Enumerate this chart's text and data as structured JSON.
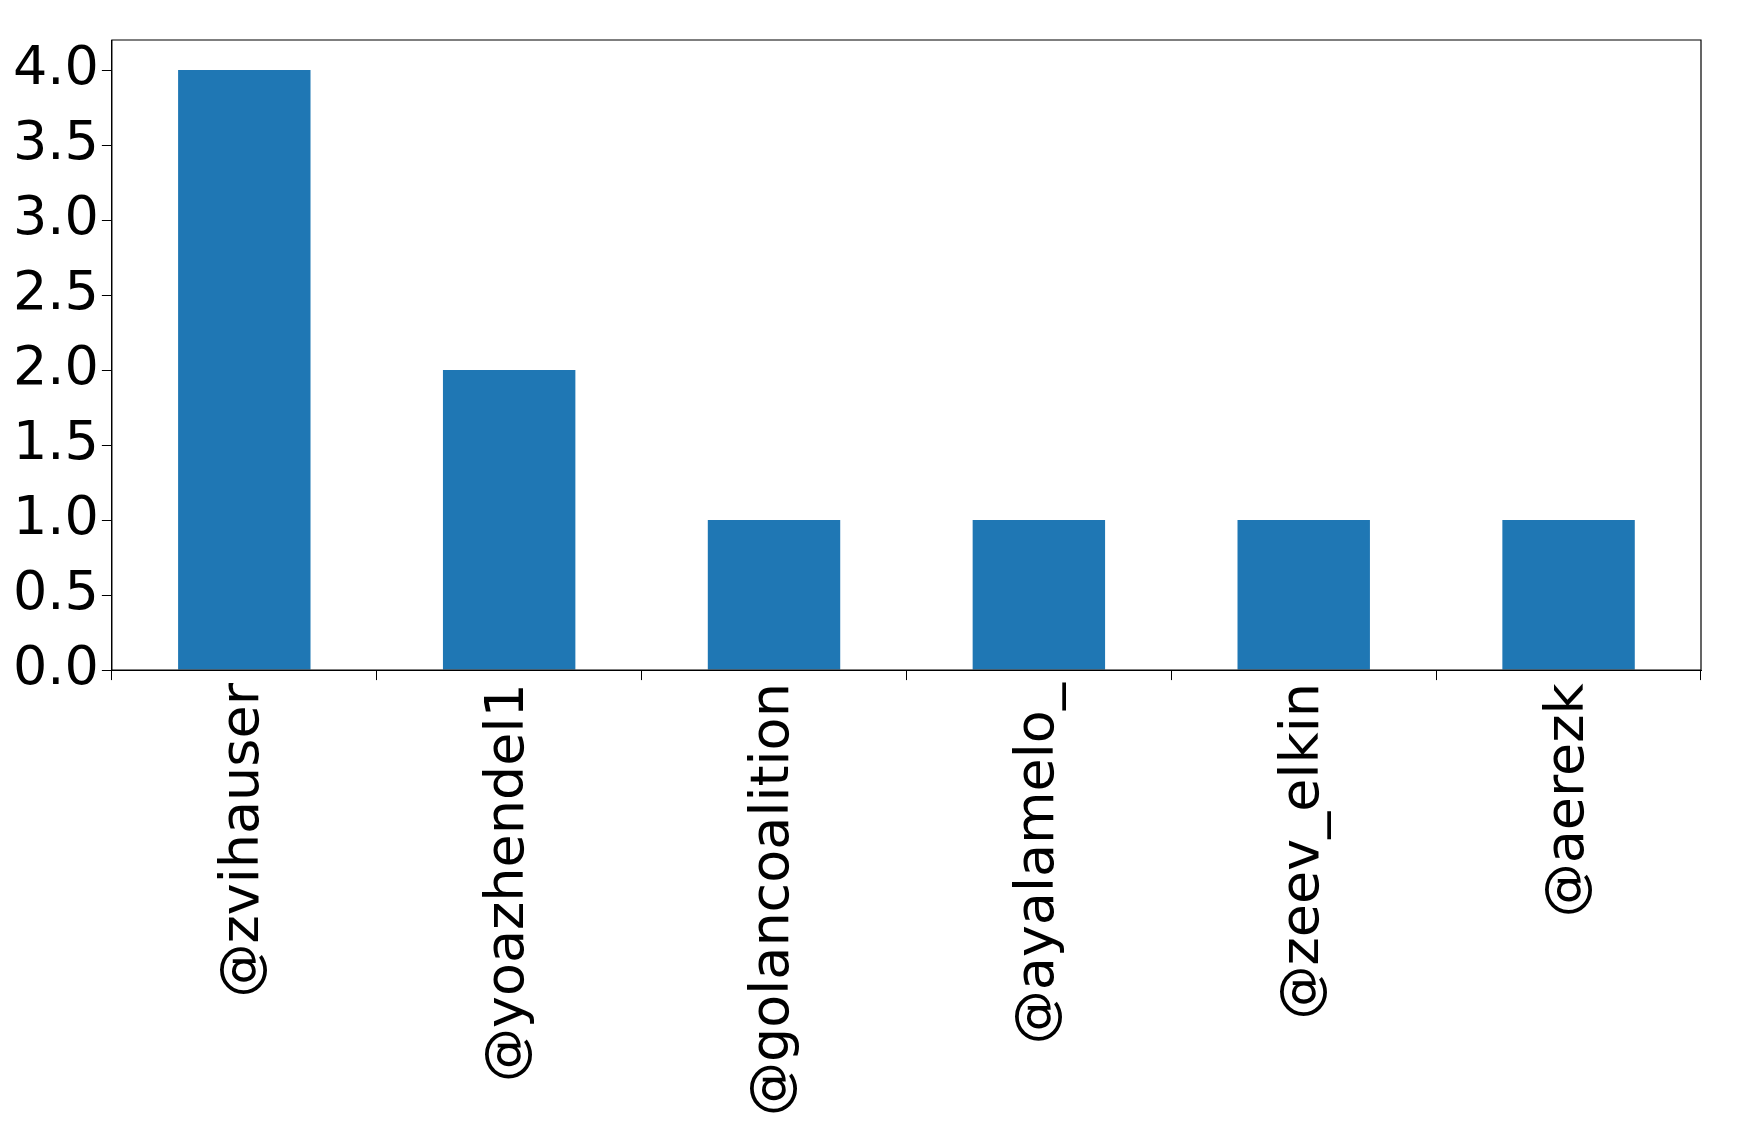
{
  "chart_data": {
    "type": "bar",
    "categories": [
      "@zvihauser",
      "@yoazhendel1",
      "@golancoalition",
      "@ayalamelo_",
      "@zeev_elkin",
      "@aerezk"
    ],
    "values": [
      4,
      2,
      1,
      1,
      1,
      1
    ],
    "color": "#1f77b4",
    "ylim": [
      0,
      4.2
    ],
    "yticks": [
      {
        "value": 0,
        "label": "0.0"
      },
      {
        "value": 0.5,
        "label": "0.5"
      },
      {
        "value": 1,
        "label": "1.0"
      },
      {
        "value": 1.5,
        "label": "1.5"
      },
      {
        "value": 2,
        "label": "2.0"
      },
      {
        "value": 2.5,
        "label": "2.5"
      },
      {
        "value": 3,
        "label": "3.0"
      },
      {
        "value": 3.5,
        "label": "3.5"
      },
      {
        "value": 4,
        "label": "4.0"
      }
    ],
    "grid": false,
    "legend": false
  }
}
